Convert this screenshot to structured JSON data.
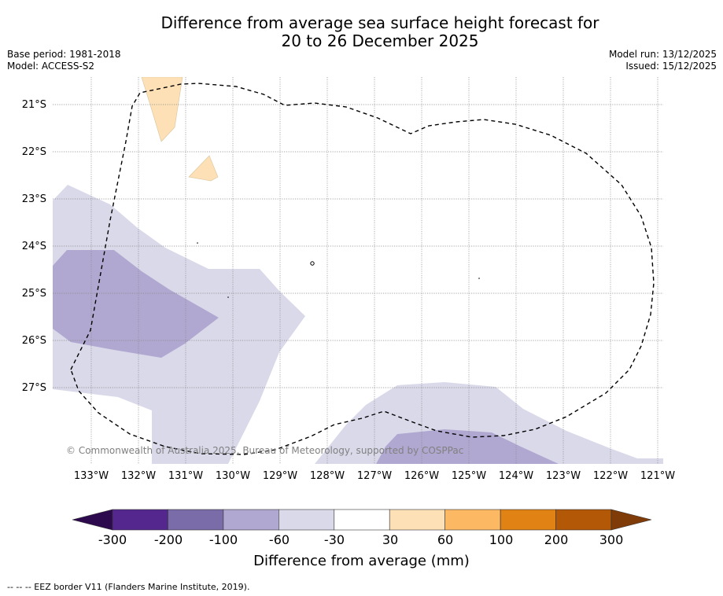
{
  "title": {
    "line1": "Difference from average sea surface height forecast for",
    "line2": "20 to 26 December 2025"
  },
  "meta_left": {
    "base_period": "Base period: 1981-2018",
    "model": "Model: ACCESS-S2"
  },
  "meta_right": {
    "model_run": "Model run: 13/12/2025",
    "issued": "Issued: 15/12/2025"
  },
  "map": {
    "lat_labels": [
      "21°S",
      "22°S",
      "23°S",
      "24°S",
      "25°S",
      "26°S",
      "27°S"
    ],
    "lon_labels": [
      "133°W",
      "132°W",
      "131°W",
      "130°W",
      "129°W",
      "128°W",
      "127°W",
      "126°W",
      "125°W",
      "124°W",
      "123°W",
      "122°W",
      "121°W"
    ],
    "copyright": "© Commonwealth of Australia 2025, Bureau of Meteorology, supported by COSPPac"
  },
  "colorbar": {
    "ticks": [
      "-300",
      "-200",
      "-100",
      "-60",
      "-30",
      "30",
      "60",
      "100",
      "200",
      "300"
    ],
    "colors": [
      "#2d0a4e",
      "#54278f",
      "#7a6ca9",
      "#b0a8d0",
      "#d9d9ea",
      "#ffffff",
      "#fde0b6",
      "#fdb863",
      "#e08214",
      "#b35806",
      "#7f3b08"
    ],
    "title": "Difference from average (mm)"
  },
  "footnote": "--  --  -- EEZ border V11 (Flanders Marine Institute, 2019)."
}
